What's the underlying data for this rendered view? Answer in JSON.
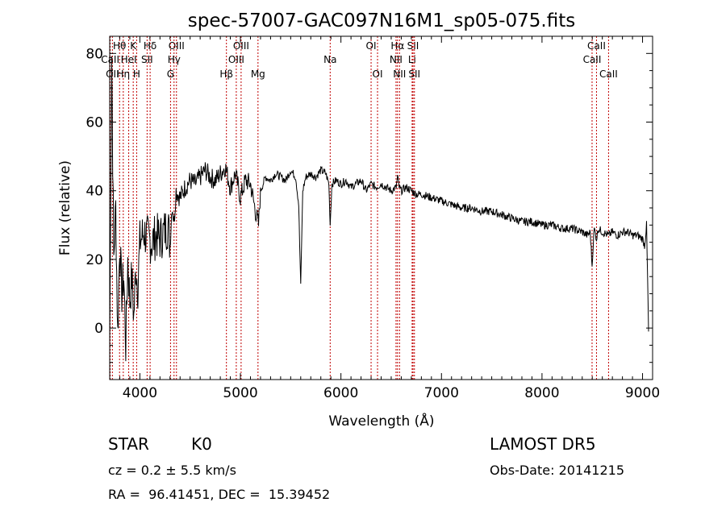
{
  "info": {
    "object_class": "STAR",
    "subclass": "K0",
    "survey": "LAMOST DR5",
    "cz": "cz = 0.2 ± 5.5 km/s",
    "obs_date": "Obs-Date: 20141215",
    "coords": "RA =  96.41451, DEC =  15.39452"
  },
  "chart_data": {
    "type": "line",
    "title": "spec-57007-GAC097N16M1_sp05-075.fits",
    "xlabel": "Wavelength (Å)",
    "ylabel": "Flux (relative)",
    "xlim": [
      3700,
      9100
    ],
    "ylim": [
      -15,
      85
    ],
    "xticks": [
      4000,
      5000,
      6000,
      7000,
      8000,
      9000
    ],
    "yticks": [
      0,
      20,
      40,
      60,
      80
    ],
    "grid": false,
    "line_color": "#c00000",
    "series": [
      {
        "x": [
          3700,
          3720,
          3740,
          3760,
          3780,
          3800,
          3820,
          3840,
          3860,
          3880,
          3900,
          3920,
          3940,
          3960,
          3980,
          4000,
          4040,
          4080,
          4120,
          4160,
          4200,
          4240,
          4280,
          4300,
          4320,
          4340,
          4360,
          4400,
          4450,
          4500,
          4550,
          4600,
          4650,
          4700,
          4750,
          4800,
          4850,
          4900,
          4950,
          5000,
          5050,
          5100,
          5150,
          5180,
          5200,
          5250,
          5300,
          5350,
          5400,
          5450,
          5500,
          5550,
          5580,
          5600,
          5620,
          5650,
          5700,
          5750,
          5800,
          5850,
          5880,
          5893,
          5910,
          5950,
          6000,
          6050,
          6100,
          6150,
          6200,
          6250,
          6300,
          6350,
          6400,
          6450,
          6500,
          6550,
          6563,
          6580,
          6600,
          6650,
          6700,
          6750,
          6800,
          6900,
          7000,
          7100,
          7200,
          7300,
          7400,
          7500,
          7600,
          7700,
          7800,
          7900,
          8000,
          8100,
          8200,
          8300,
          8400,
          8450,
          8480,
          8498,
          8510,
          8520,
          8542,
          8560,
          8600,
          8662,
          8700,
          8750,
          8800,
          8850,
          8900,
          8950,
          9000,
          9020,
          9040,
          9060
        ],
        "y": [
          -5,
          80,
          20,
          35,
          -2,
          25,
          10,
          15,
          -5,
          20,
          8,
          15,
          3,
          18,
          12,
          25,
          28,
          26,
          25,
          27,
          26,
          28,
          30,
          24,
          36,
          31,
          40,
          38,
          41,
          43,
          42,
          44,
          46,
          44,
          43,
          45,
          47,
          41,
          45,
          38,
          43,
          42,
          34,
          30,
          40,
          44,
          43,
          45,
          44,
          43,
          46,
          44,
          36,
          12,
          40,
          44,
          45,
          44,
          46,
          45,
          42,
          30,
          42,
          43,
          42,
          43,
          41,
          42,
          43,
          40,
          42,
          41,
          42,
          41,
          40,
          41,
          44,
          41,
          40,
          41,
          40,
          39,
          39,
          38,
          37,
          36,
          35,
          35,
          34,
          34,
          33,
          32,
          31,
          31,
          30,
          30,
          29,
          29,
          28,
          27,
          28,
          18,
          25,
          29,
          26,
          29,
          28,
          27,
          28,
          27,
          28,
          28,
          27,
          27,
          26,
          24,
          30,
          -1
        ]
      }
    ],
    "line_labels": [
      {
        "text": "Hθ",
        "wavelength": 3798,
        "row": 1
      },
      {
        "text": "K",
        "wavelength": 3934,
        "row": 1
      },
      {
        "text": "Hδ",
        "wavelength": 4102,
        "row": 1
      },
      {
        "text": "OIII",
        "wavelength": 4364,
        "row": 1
      },
      {
        "text": "OIII",
        "wavelength": 5007,
        "row": 1
      },
      {
        "text": "OI",
        "wavelength": 6300,
        "row": 1
      },
      {
        "text": "Hα",
        "wavelength": 6563,
        "row": 1
      },
      {
        "text": "SII",
        "wavelength": 6717,
        "row": 1
      },
      {
        "text": "CaII",
        "wavelength": 8542,
        "row": 1
      },
      {
        "text": "CaII",
        "wavelength": 3705,
        "row": 2
      },
      {
        "text": "HeI",
        "wavelength": 3889,
        "row": 2
      },
      {
        "text": "SII",
        "wavelength": 4072,
        "row": 2
      },
      {
        "text": "Hγ",
        "wavelength": 4340,
        "row": 2
      },
      {
        "text": "OIII",
        "wavelength": 4959,
        "row": 2
      },
      {
        "text": "Na",
        "wavelength": 5893,
        "row": 2
      },
      {
        "text": "NII",
        "wavelength": 6548,
        "row": 2
      },
      {
        "text": "Li",
        "wavelength": 6708,
        "row": 2
      },
      {
        "text": "CaII",
        "wavelength": 8498,
        "row": 2
      },
      {
        "text": "OII",
        "wavelength": 3727,
        "row": 3
      },
      {
        "text": "Hη",
        "wavelength": 3835,
        "row": 3
      },
      {
        "text": "H",
        "wavelength": 3968,
        "row": 3
      },
      {
        "text": "G",
        "wavelength": 4305,
        "row": 3
      },
      {
        "text": "Hβ",
        "wavelength": 4861,
        "row": 3
      },
      {
        "text": "Mg",
        "wavelength": 5175,
        "row": 3
      },
      {
        "text": "OI",
        "wavelength": 6364,
        "row": 3
      },
      {
        "text": "NII",
        "wavelength": 6583,
        "row": 3
      },
      {
        "text": "SII",
        "wavelength": 6731,
        "row": 3
      },
      {
        "text": "CaII",
        "wavelength": 8662,
        "row": 3
      }
    ]
  }
}
